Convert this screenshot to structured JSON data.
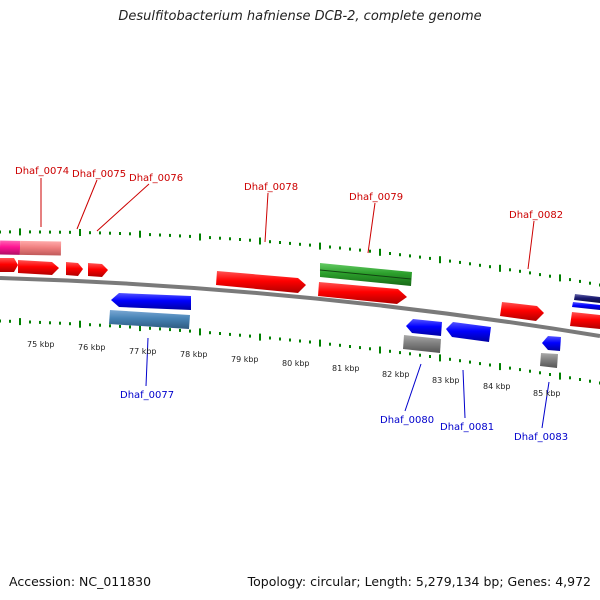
{
  "title": "Desulfitobacterium hafniense DCB-2, complete genome",
  "footer": {
    "accession": "Accession: NC_011830",
    "topology": "Topology: circular; Length: 5,279,134 bp; Genes: 4,972"
  },
  "scale_labels": [
    "75 kbp",
    "76 kbp",
    "77 kbp",
    "78 kbp",
    "79 kbp",
    "80 kbp",
    "81 kbp",
    "82 kbp",
    "83 kbp",
    "84 kbp",
    "85 kbp"
  ],
  "genes_top": [
    "Dhaf_0074",
    "Dhaf_0075",
    "Dhaf_0076",
    "Dhaf_0078",
    "Dhaf_0079",
    "Dhaf_0082"
  ],
  "genes_bottom": [
    "Dhaf_0077",
    "Dhaf_0080",
    "Dhaf_0081",
    "Dhaf_0083"
  ],
  "colors": {
    "forward_gene": "#ff0000",
    "reverse_gene": "#0000ff",
    "rna": "#228b22",
    "pseudo": "#808080",
    "other": "#ff1493",
    "steel": "#4682b4",
    "tick": "#008000",
    "backbone": "#808080",
    "label_top": "#cc0000",
    "label_bottom": "#0000cc"
  }
}
